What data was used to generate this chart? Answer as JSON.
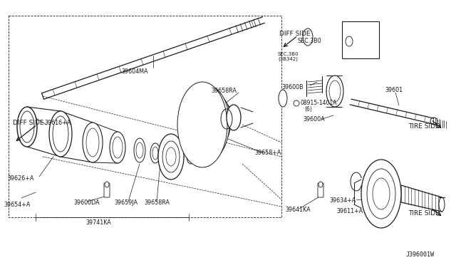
{
  "background_color": "#ffffff",
  "line_color": "#1a1a1a",
  "footer": "J396001W",
  "fig_width": 6.4,
  "fig_height": 3.72,
  "dpi": 100,
  "xlim": [
    0,
    640
  ],
  "ylim": [
    0,
    372
  ]
}
